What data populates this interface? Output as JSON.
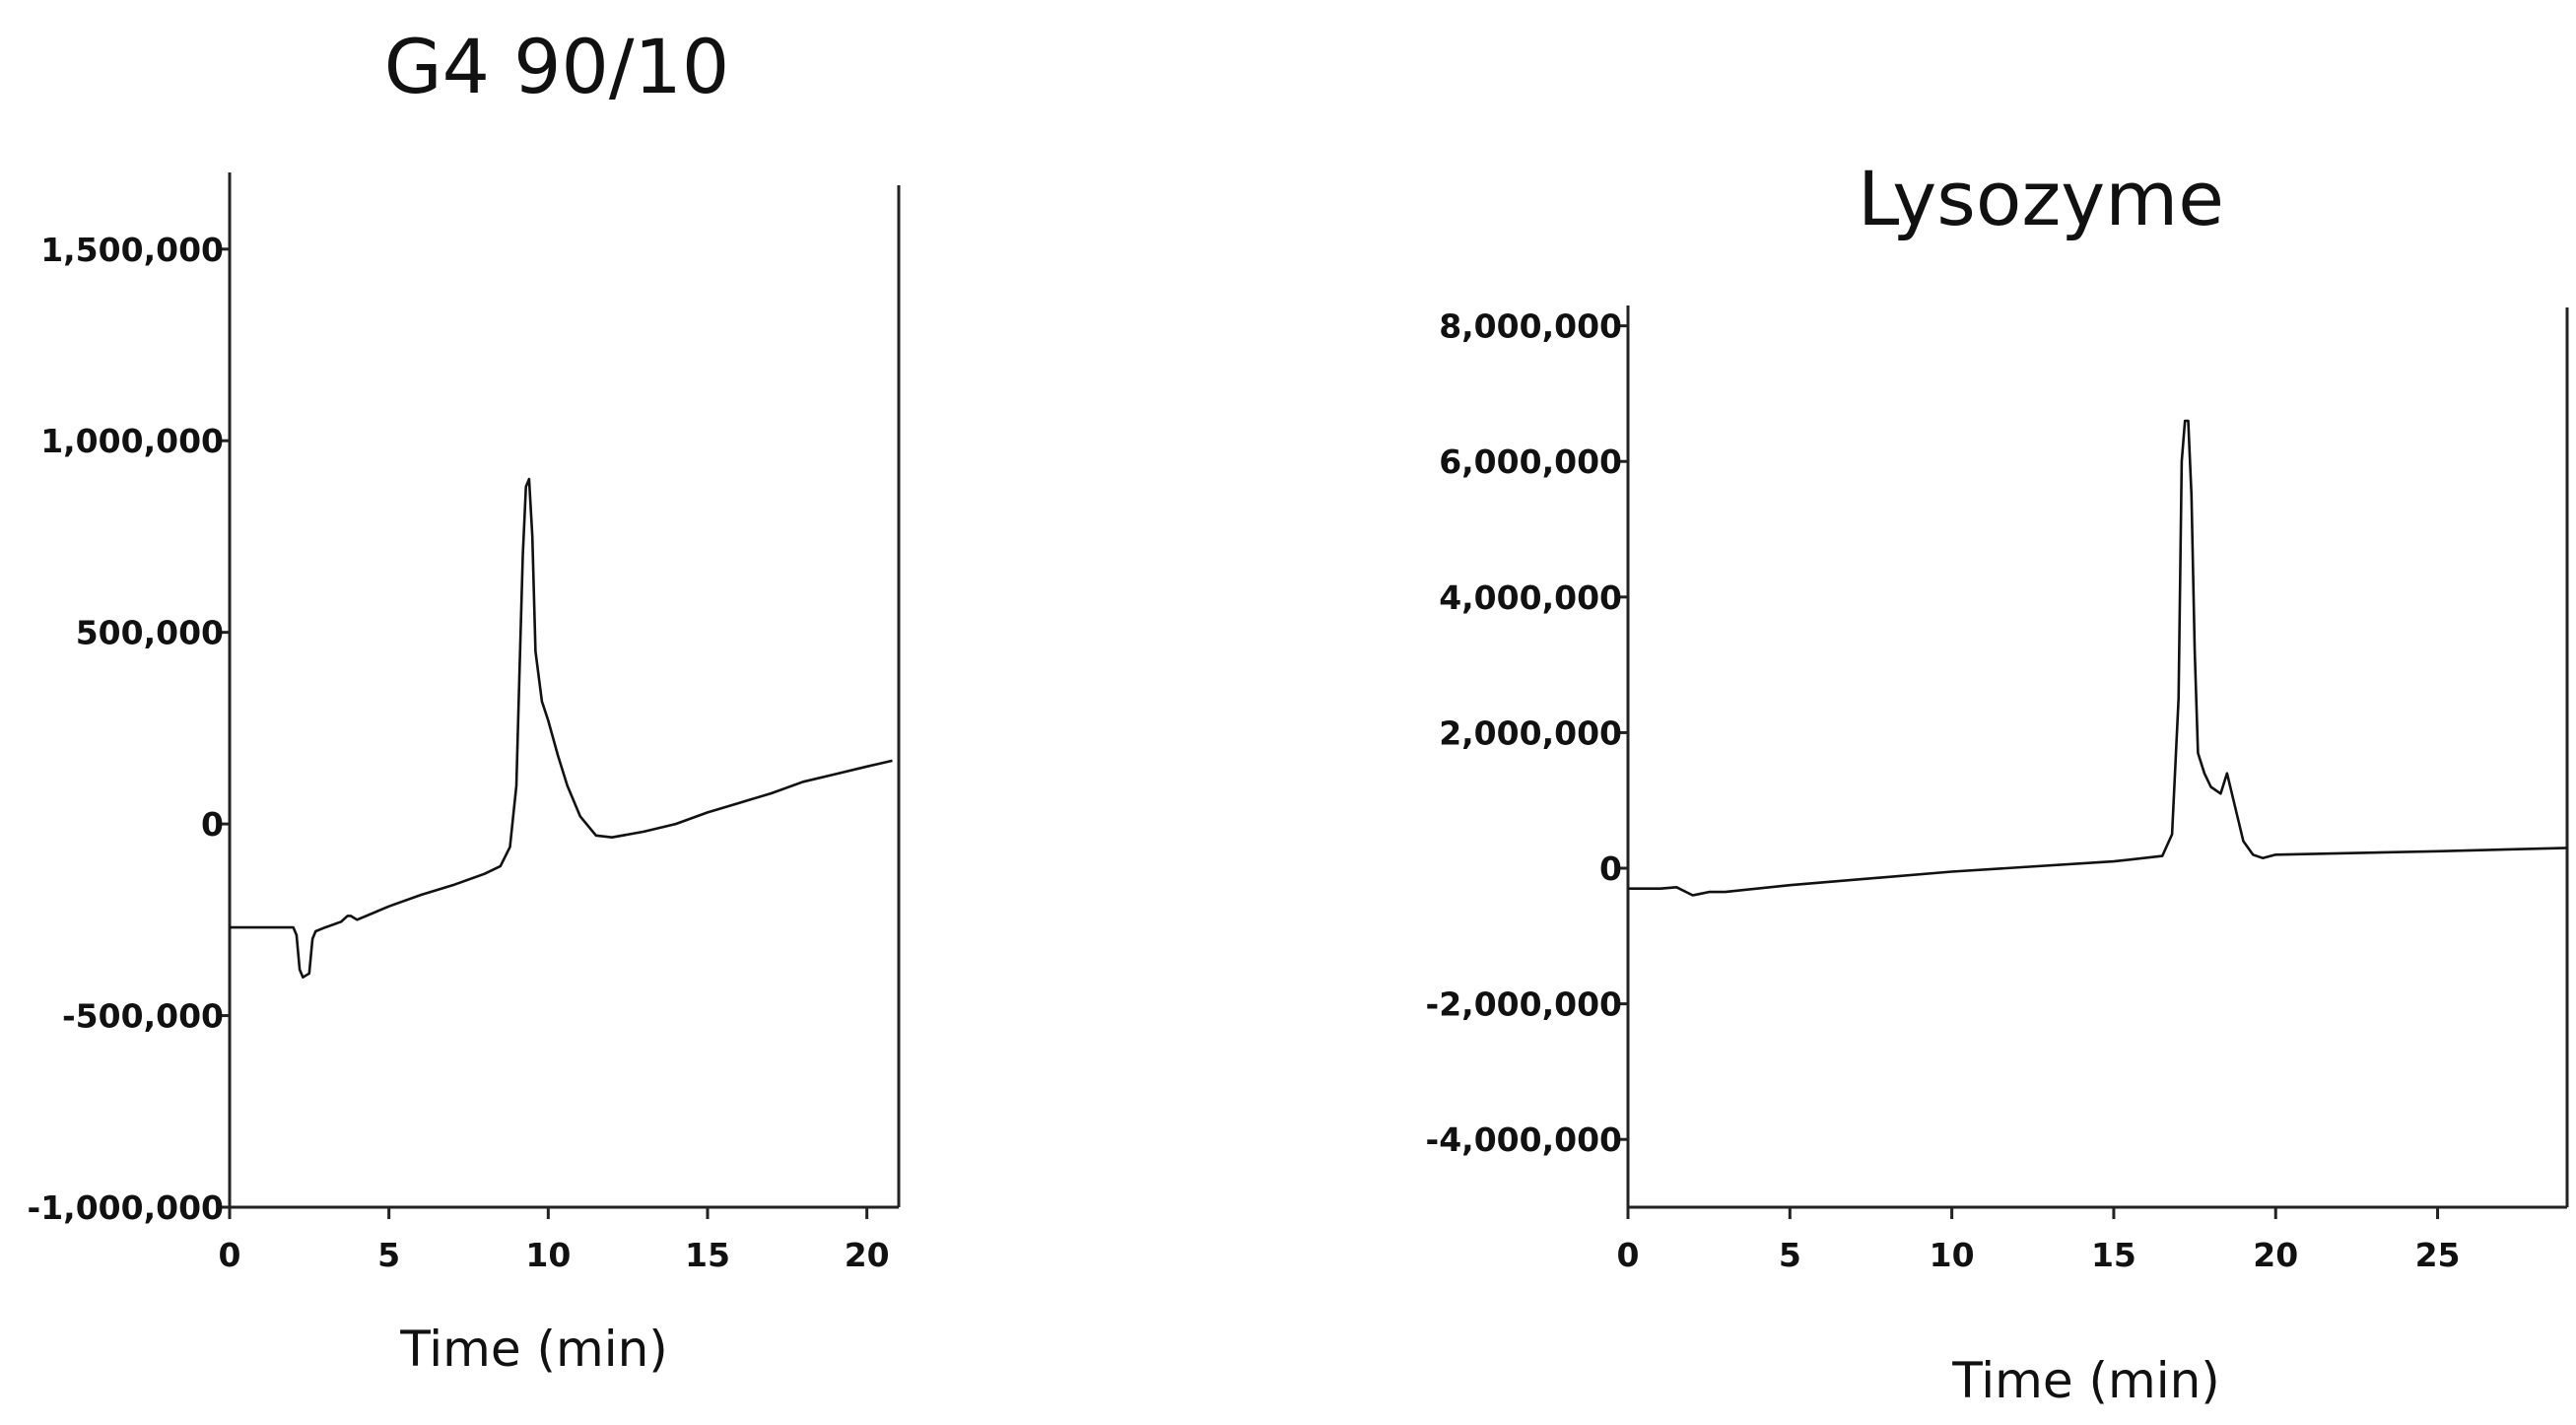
{
  "chart_data": [
    {
      "type": "line",
      "title": "G4 90/10",
      "xlabel": "Time (min)",
      "ylabel": "",
      "xlim": [
        0,
        21
      ],
      "ylim": [
        -1000000,
        1700000
      ],
      "xticks": [
        0,
        5,
        10,
        15,
        20
      ],
      "xtick_labels": [
        "0",
        "5",
        "10",
        "15",
        "20"
      ],
      "yticks": [
        1500000,
        1000000,
        500000,
        0,
        -500000,
        -1000000
      ],
      "ytick_labels": [
        "1,500,000",
        "1,000,000",
        "500,000",
        "0",
        "-500,000",
        "-1,000,000"
      ],
      "grid": false,
      "series": [
        {
          "x": [
            0,
            1,
            2.0,
            2.1,
            2.2,
            2.3,
            2.5,
            2.6,
            2.7,
            3.0,
            3.5,
            3.7,
            3.8,
            4.0,
            5,
            6,
            7,
            8,
            8.5,
            8.8,
            9.0,
            9.1,
            9.2,
            9.3,
            9.4,
            9.5,
            9.6,
            9.8,
            10.0,
            10.3,
            10.6,
            11.0,
            11.5,
            12,
            13,
            14,
            15,
            16,
            17,
            18,
            19,
            20,
            20.8
          ],
          "values": [
            -270000,
            -270000,
            -270000,
            -290000,
            -380000,
            -400000,
            -390000,
            -300000,
            -280000,
            -270000,
            -255000,
            -240000,
            -240000,
            -250000,
            -215000,
            -185000,
            -160000,
            -130000,
            -110000,
            -60000,
            100000,
            400000,
            700000,
            880000,
            900000,
            750000,
            450000,
            320000,
            270000,
            180000,
            100000,
            20000,
            -30000,
            -35000,
            -20000,
            0,
            30000,
            55000,
            80000,
            110000,
            130000,
            150000,
            165000
          ]
        }
      ]
    },
    {
      "type": "line",
      "title": "Lysozyme",
      "xlabel": "Time (min)",
      "ylabel": "",
      "xlim": [
        0,
        29
      ],
      "ylim": [
        -5000000,
        8300000
      ],
      "xticks": [
        0,
        5,
        10,
        15,
        20,
        25
      ],
      "xtick_labels": [
        "0",
        "5",
        "10",
        "15",
        "20",
        "25"
      ],
      "yticks": [
        8000000,
        6000000,
        4000000,
        2000000,
        0,
        -2000000,
        -4000000
      ],
      "ytick_labels": [
        "8,000,000",
        "6,000,000",
        "4,000,000",
        "2,000,000",
        "0",
        "-2,000,000",
        "-4,000,000"
      ],
      "grid": false,
      "series": [
        {
          "x": [
            0,
            1,
            1.5,
            2.0,
            2.2,
            2.5,
            3,
            5,
            10,
            15,
            16.5,
            16.8,
            17.0,
            17.1,
            17.2,
            17.3,
            17.4,
            17.5,
            17.6,
            17.8,
            18.0,
            18.3,
            18.5,
            18.6,
            18.8,
            19.0,
            19.3,
            19.6,
            20,
            25,
            29
          ],
          "values": [
            -300000,
            -300000,
            -280000,
            -400000,
            -380000,
            -350000,
            -350000,
            -250000,
            -50000,
            100000,
            180000,
            500000,
            2500000,
            6000000,
            6600000,
            6600000,
            5500000,
            3200000,
            1700000,
            1400000,
            1200000,
            1100000,
            1400000,
            1200000,
            800000,
            400000,
            200000,
            150000,
            200000,
            250000,
            300000
          ]
        }
      ]
    }
  ]
}
